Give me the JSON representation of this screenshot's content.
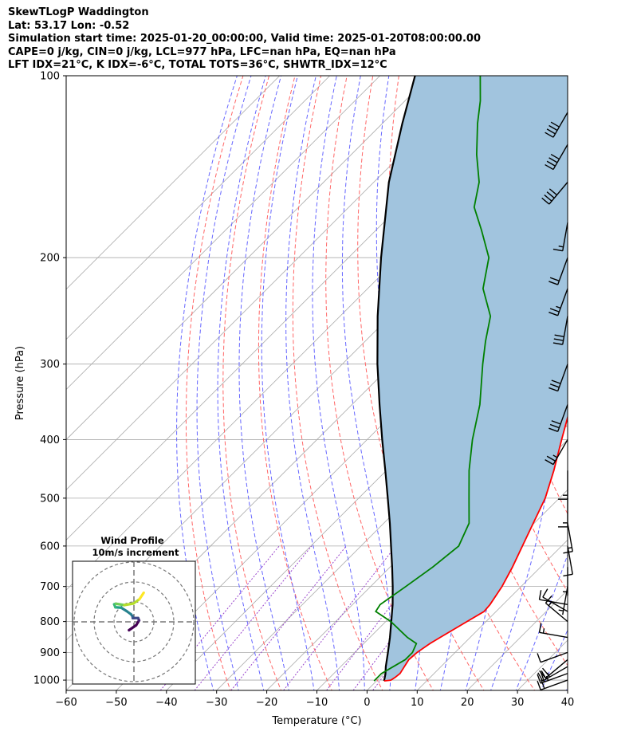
{
  "header": {
    "line1": "SkewTLogP Waddington",
    "line2": "Lat: 53.17   Lon: -0.52",
    "line3": "Simulation start time: 2025-01-20_00:00:00, Valid time: 2025-01-20T08:00:00.00",
    "line4": "CAPE=0 j/kg, CIN=0 j/kg, LCL=977 hPa, LFC=nan hPa, EQ=nan hPa",
    "line5": "LFT IDX=21°C, K IDX=-6°C, TOTAL TOTS=36°C, SHWTR_IDX=12°C"
  },
  "chart_data": {
    "type": "line",
    "xlabel": "Temperature (°C)",
    "ylabel": "Pressure (hPa)",
    "x_ticks": [
      -60,
      -50,
      -40,
      -30,
      -20,
      -10,
      0,
      10,
      20,
      30,
      40
    ],
    "x_tick_labels": [
      "−60",
      "−50",
      "−40",
      "−30",
      "−20",
      "−10",
      "0",
      "10",
      "20",
      "30",
      "40"
    ],
    "y_ticks": [
      1000,
      900,
      800,
      700,
      600,
      500,
      400,
      300,
      200,
      100
    ],
    "y_tick_labels": [
      "1000",
      "900",
      "800",
      "700",
      "600",
      "500",
      "400",
      "300",
      "200",
      "100"
    ],
    "xlim": [
      -60,
      40
    ],
    "ylim": [
      1040,
      100
    ],
    "y_scale": "log",
    "skew": "45 degrees",
    "grid": true,
    "colors": {
      "temperature": "#ff0000",
      "dewpoint": "#008000",
      "parcel": "#000000",
      "cape_fill": "#a1c4de",
      "dry_adiabat": "#ff6666",
      "moist_adiabat": "#6666ff",
      "mixing_ratio": "#9944cc",
      "isotherm": "#aaaaaa"
    },
    "series": [
      {
        "key": "temperature",
        "pressure": [
          1003,
          1000,
          990,
          975,
          950,
          925,
          900,
          870,
          850,
          800,
          770,
          750,
          700,
          650,
          600,
          550,
          500,
          450,
          400,
          350,
          300,
          275,
          250,
          225,
          200,
          180,
          165,
          150,
          135,
          120,
          110,
          100
        ],
        "values": [
          1.5,
          2.7,
          3.0,
          3.2,
          2.7,
          2.2,
          2.4,
          3.2,
          4.0,
          6.2,
          7.6,
          7.4,
          6.2,
          4.4,
          2.2,
          -0.2,
          -2.8,
          -6.6,
          -11.2,
          -16.3,
          -23.8,
          -28.5,
          -33.6,
          -38.0,
          -39.2,
          -40.5,
          -42.8,
          -47.2,
          -53.0,
          -58.5,
          -63.0,
          -67.0
        ]
      },
      {
        "key": "dewpoint",
        "pressure": [
          1003,
          975,
          950,
          925,
          900,
          870,
          850,
          800,
          770,
          750,
          700,
          650,
          600,
          550,
          500,
          450,
          400,
          350,
          300,
          275,
          250,
          225,
          200,
          180,
          165,
          150,
          135,
          120,
          110,
          100
        ],
        "values": [
          -0.5,
          -0.5,
          0.5,
          1.5,
          1.5,
          0.5,
          -2.5,
          -9.0,
          -14.0,
          -14.5,
          -13.0,
          -11.5,
          -10.5,
          -13.0,
          -18.0,
          -23.5,
          -29.0,
          -34.5,
          -42.0,
          -46.0,
          -50.0,
          -57.0,
          -62.0,
          -69.0,
          -75.0,
          -79.0,
          -85.0,
          -91.0,
          -95.0,
          -100.0
        ]
      },
      {
        "key": "parcel",
        "pressure": [
          1003,
          977,
          950,
          900,
          850,
          800,
          750,
          700,
          650,
          600,
          550,
          500,
          450,
          400,
          350,
          300,
          250,
          200,
          150,
          120,
          100
        ],
        "values": [
          1.5,
          0.4,
          -1.0,
          -3.4,
          -6.0,
          -8.9,
          -12.0,
          -15.6,
          -19.6,
          -24.0,
          -28.8,
          -34.2,
          -40.2,
          -47.0,
          -54.5,
          -63.0,
          -72.5,
          -83.5,
          -97.0,
          -106.0,
          -113.0
        ]
      }
    ],
    "wind_barbs": {
      "pressure": [
        1000,
        975,
        950,
        925,
        900,
        850,
        800,
        770,
        750,
        700,
        650,
        600,
        550,
        500,
        450,
        400,
        350,
        300,
        250,
        225,
        200,
        175,
        150,
        130,
        115
      ],
      "speed_kt": [
        20,
        25,
        25,
        20,
        10,
        15,
        15,
        10,
        10,
        5,
        5,
        10,
        15,
        15,
        15,
        25,
        30,
        30,
        30,
        25,
        20,
        15,
        40,
        40,
        40
      ],
      "direction_deg": [
        250,
        250,
        240,
        230,
        250,
        280,
        310,
        300,
        280,
        190,
        180,
        170,
        170,
        180,
        180,
        210,
        200,
        200,
        190,
        200,
        200,
        190,
        220,
        210,
        210
      ]
    },
    "wind_profile_inset": {
      "title_line1": "Wind Profile",
      "title_line2": "10m/s increment",
      "u_ms": [
        -2.5,
        1.1,
        2.6,
        2.1,
        -0.6,
        -0.7,
        -1.5,
        -3.7,
        -6.4,
        -9.3,
        -9.9,
        -9.1,
        -4.8,
        -0.2,
        2.8,
        4.9
      ],
      "v_ms": [
        -4.2,
        -1.7,
        0.7,
        1.9,
        1.9,
        2.8,
        3.8,
        5.4,
        7.1,
        7.3,
        8.8,
        9.1,
        8.4,
        9.2,
        11.4,
        14.6
      ]
    }
  }
}
